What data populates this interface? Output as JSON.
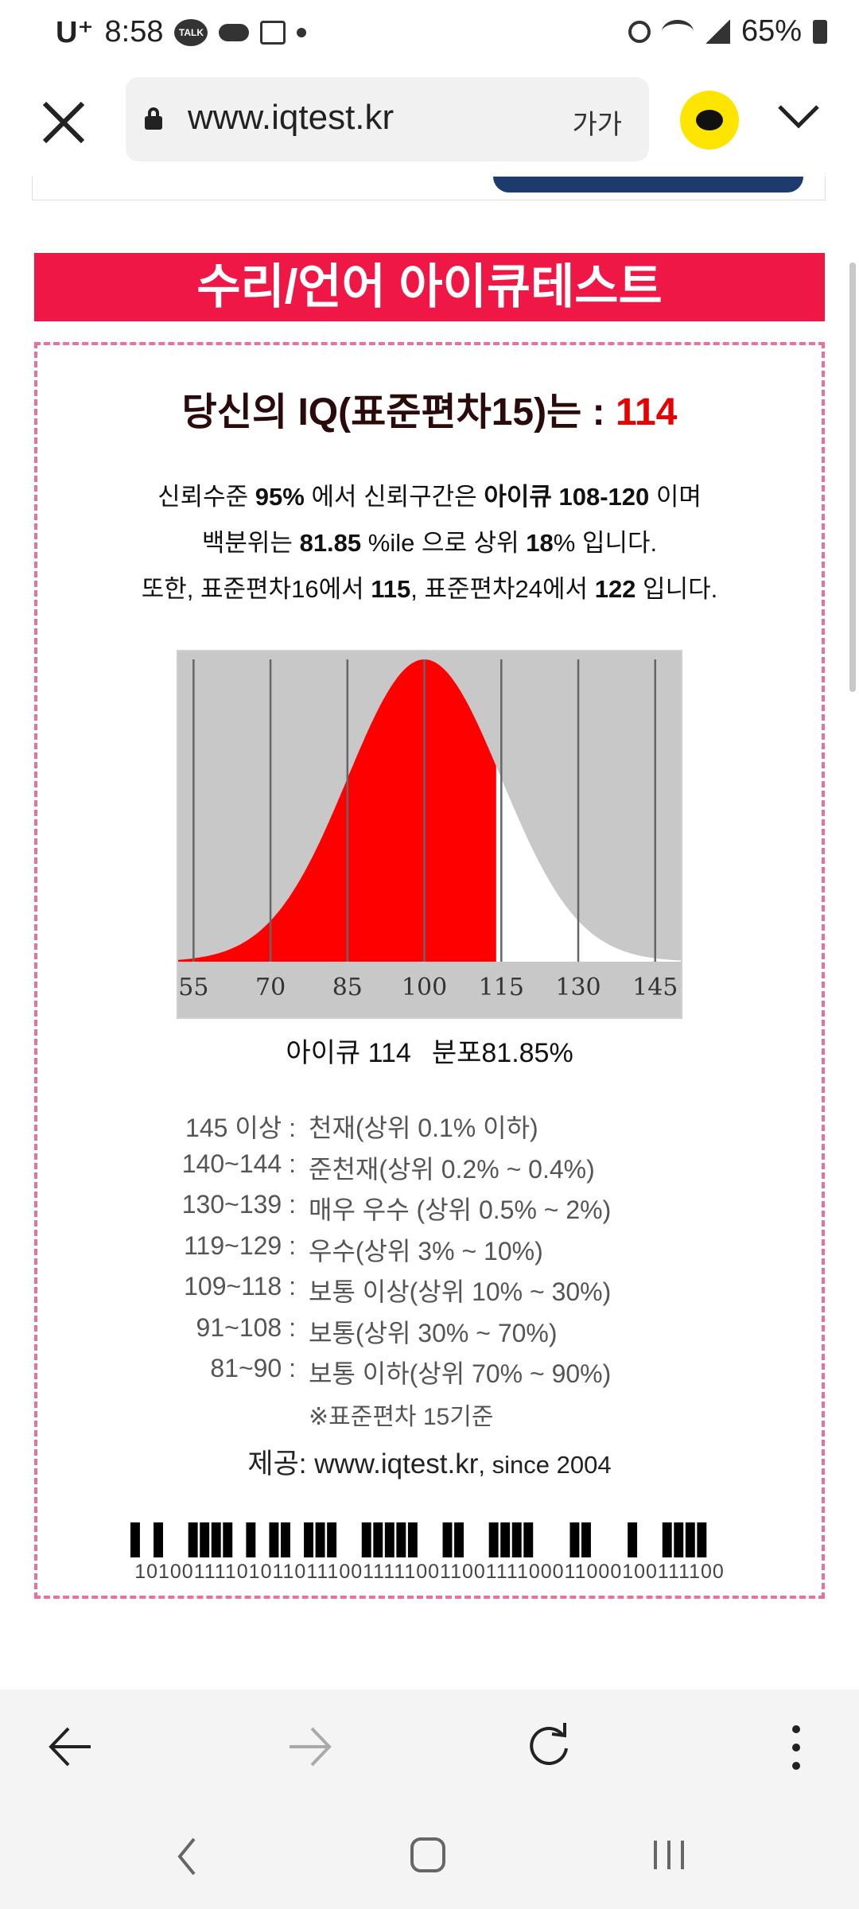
{
  "status_bar": {
    "carrier": "U⁺",
    "time": "8:58",
    "talk_badge": "TALK",
    "battery": "65%"
  },
  "browser": {
    "url": "www.iqtest.kr",
    "text_size_label": "가가"
  },
  "page": {
    "title": "수리/언어 아이큐테스트",
    "heading_prefix": "당신의 IQ(표준편차15)는 : ",
    "iq": "114",
    "line1": {
      "a": "신뢰수준 ",
      "b": "95%",
      "c": " 에서 신뢰구간은 ",
      "d": "아이큐 108-120",
      "e": " 이며"
    },
    "line2": {
      "a": "백분위는 ",
      "b": "81.85",
      "c": " %ile 으로 상위 ",
      "d": "18",
      "e": "% 입니다."
    },
    "line3": {
      "a": "또한, 표준편차16에서 ",
      "b": "115",
      "c": ", 표준편차24에서 ",
      "d": "122",
      "e": " 입니다."
    },
    "caption_iq": "아이큐 114",
    "caption_pct": "분포81.85%",
    "ranges": [
      {
        "range": "145 이상 :",
        "desc": "천재(상위 0.1% 이하)"
      },
      {
        "range": "140~144 :",
        "desc": "준천재(상위 0.2% ~ 0.4%)"
      },
      {
        "range": "130~139 :",
        "desc": "매우 우수 (상위 0.5% ~ 2%)"
      },
      {
        "range": "119~129 :",
        "desc": "우수(상위 3% ~ 10%)"
      },
      {
        "range": "109~118 :",
        "desc": "보통 이상(상위 10% ~ 30%)"
      },
      {
        "range": "91~108 :",
        "desc": "보통(상위 30% ~ 70%)"
      },
      {
        "range": "81~90 :",
        "desc": "보통 이하(상위 70% ~ 90%)"
      }
    ],
    "note": "※표준편차 15기준",
    "provider_prefix": "제공: www.iqtest.kr",
    "provider_since": ", since 2004",
    "barcode_number": "1010011110101101110011111001100111100011000100111100"
  },
  "chart_data": {
    "type": "area",
    "title": "",
    "xlabel": "",
    "ylabel": "",
    "xlim": [
      52,
      150
    ],
    "x_ticks": [
      "55",
      "70",
      "85",
      "100",
      "115",
      "130",
      "145"
    ],
    "tick_values": [
      55,
      70,
      85,
      100,
      115,
      130,
      145
    ],
    "distribution": {
      "mean": 100,
      "sd": 15
    },
    "highlight_upto": 114,
    "colors": {
      "filled": "#ff0000",
      "background": "#c8c8c8",
      "curve_fill": "#ffffff"
    }
  },
  "colors": {
    "banner": "#ef1746",
    "iq_value": "#e60000",
    "box_border": "#e8739a"
  }
}
